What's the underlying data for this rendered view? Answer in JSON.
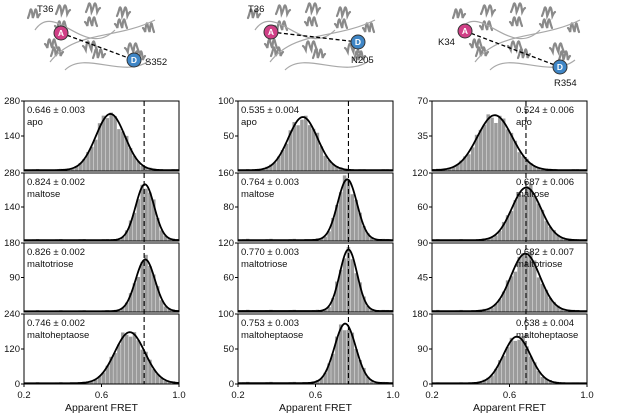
{
  "colors": {
    "bars": "#9b9b9b",
    "fit_curve": "#000000",
    "donor_dye": "#3f86c6",
    "acceptor_dye": "#d03f86",
    "protein_cartoon": "#8a8a8a"
  },
  "dyes": {
    "acceptor_letter": "A",
    "donor_letter": "D"
  },
  "structures": [
    {
      "acceptor_site": "T36",
      "donor_site": "S352"
    },
    {
      "acceptor_site": "T36",
      "donor_site": "N205"
    },
    {
      "acceptor_site": "K34",
      "donor_site": "R354"
    }
  ],
  "chart_data": [
    {
      "type": "bar",
      "xlabel": "Apparent FRET",
      "xlim": [
        0.2,
        1.0
      ],
      "xticks": [
        "0.2",
        "0.6",
        "1.0"
      ],
      "reference_line_x": 0.82,
      "panels": [
        {
          "condition": "apo",
          "value_text": "0.646 ± 0.003",
          "mean": 0.646,
          "sd": 0.075,
          "peak": 225,
          "ylim": [
            0,
            280
          ],
          "yticks": [
            "280",
            "140",
            "0"
          ],
          "annotation_side": "left"
        },
        {
          "condition": "maltose",
          "value_text": "0.824 ± 0.002",
          "mean": 0.824,
          "sd": 0.048,
          "peak": 230,
          "ylim": [
            0,
            280
          ],
          "yticks": [
            "280",
            "140",
            "0"
          ],
          "annotation_side": "left"
        },
        {
          "condition": "maltotriose",
          "value_text": "0.826 ± 0.002",
          "mean": 0.826,
          "sd": 0.05,
          "peak": 135,
          "ylim": [
            0,
            180
          ],
          "yticks": [
            "180",
            "90",
            "0"
          ],
          "annotation_side": "left"
        },
        {
          "condition": "maltoheptaose",
          "value_text": "0.746 ± 0.002",
          "mean": 0.746,
          "sd": 0.078,
          "peak": 175,
          "ylim": [
            0,
            240
          ],
          "yticks": [
            "240",
            "120",
            "0"
          ],
          "annotation_side": "left"
        }
      ]
    },
    {
      "type": "bar",
      "xlabel": "Apparent FRET",
      "xlim": [
        0.2,
        1.0
      ],
      "xticks": [
        "0.2",
        "0.6",
        "1.0"
      ],
      "reference_line_x": 0.77,
      "panels": [
        {
          "condition": "apo",
          "value_text": "0.535 ± 0.004",
          "mean": 0.535,
          "sd": 0.075,
          "peak": 76,
          "ylim": [
            0,
            100
          ],
          "yticks": [
            "100",
            "50",
            "0"
          ],
          "annotation_side": "left"
        },
        {
          "condition": "maltose",
          "value_text": "0.764 ± 0.003",
          "mean": 0.764,
          "sd": 0.05,
          "peak": 143,
          "ylim": [
            0,
            160
          ],
          "yticks": [
            "160",
            "80",
            "0"
          ],
          "annotation_side": "left"
        },
        {
          "condition": "maltotriose",
          "value_text": "0.770 ± 0.003",
          "mean": 0.77,
          "sd": 0.045,
          "peak": 107,
          "ylim": [
            0,
            120
          ],
          "yticks": [
            "120",
            "60",
            "0"
          ],
          "annotation_side": "left"
        },
        {
          "condition": "maltoheptaose",
          "value_text": "0.753 ± 0.003",
          "mean": 0.753,
          "sd": 0.055,
          "peak": 85,
          "ylim": [
            0,
            100
          ],
          "yticks": [
            "100",
            "50",
            "0"
          ],
          "annotation_side": "left"
        }
      ]
    },
    {
      "type": "bar",
      "xlabel": "Apparent FRET",
      "xlim": [
        0.2,
        1.0
      ],
      "xticks": [
        "0.2",
        "0.6",
        "1.0"
      ],
      "reference_line_x": 0.685,
      "panels": [
        {
          "condition": "apo",
          "value_text": "0.524 ± 0.006",
          "mean": 0.524,
          "sd": 0.09,
          "peak": 55,
          "ylim": [
            0,
            70
          ],
          "yticks": [
            "70",
            "35",
            "0"
          ],
          "annotation_side": "right"
        },
        {
          "condition": "maltose",
          "value_text": "0.687 ± 0.006",
          "mean": 0.687,
          "sd": 0.075,
          "peak": 93,
          "ylim": [
            0,
            120
          ],
          "yticks": [
            "120",
            "60",
            "0"
          ],
          "annotation_side": "right"
        },
        {
          "condition": "maltotriose",
          "value_text": "0.682 ± 0.007",
          "mean": 0.682,
          "sd": 0.075,
          "peak": 75,
          "ylim": [
            0,
            90
          ],
          "yticks": [
            "90",
            "45",
            "0"
          ],
          "annotation_side": "right"
        },
        {
          "condition": "maltoheptaose",
          "value_text": "0.638 ± 0.004",
          "mean": 0.638,
          "sd": 0.07,
          "peak": 120,
          "ylim": [
            0,
            180
          ],
          "yticks": [
            "180",
            "90",
            "0"
          ],
          "annotation_side": "right"
        }
      ]
    }
  ]
}
